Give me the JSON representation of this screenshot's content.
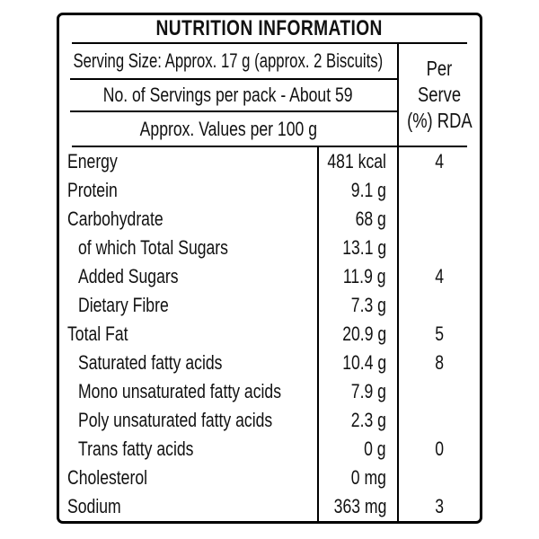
{
  "title": "NUTRITION INFORMATION",
  "header": {
    "serving_size": "Serving Size: Approx. 17 g (approx. 2 Biscuits)",
    "servings_per_pack": "No. of Servings per pack - About 59",
    "values_basis": "Approx. Values per 100 g",
    "per_serve": {
      "line1": "Per",
      "line2": "Serve",
      "line3": "(%) RDA"
    }
  },
  "rows": [
    {
      "label": "Energy",
      "value": "481 kcal",
      "rda": "4",
      "indent": false
    },
    {
      "label": "Protein",
      "value": "9.1 g",
      "rda": "",
      "indent": false
    },
    {
      "label": "Carbohydrate",
      "value": "68 g",
      "rda": "",
      "indent": false
    },
    {
      "label": "of which Total Sugars",
      "value": "13.1 g",
      "rda": "",
      "indent": true
    },
    {
      "label": "Added Sugars",
      "value": "11.9 g",
      "rda": "4",
      "indent": true
    },
    {
      "label": "Dietary Fibre",
      "value": "7.3 g",
      "rda": "",
      "indent": true
    },
    {
      "label": "Total Fat",
      "value": "20.9 g",
      "rda": "5",
      "indent": false
    },
    {
      "label": "Saturated fatty acids",
      "value": "10.4 g",
      "rda": "8",
      "indent": true
    },
    {
      "label": "Mono unsaturated fatty acids",
      "value": "7.9 g",
      "rda": "",
      "indent": true
    },
    {
      "label": "Poly unsaturated fatty acids",
      "value": "2.3 g",
      "rda": "",
      "indent": true
    },
    {
      "label": "Trans fatty acids",
      "value": "0 g",
      "rda": "0",
      "indent": true
    },
    {
      "label": "Cholesterol",
      "value": "0 mg",
      "rda": "",
      "indent": false
    },
    {
      "label": "Sodium",
      "value": "363 mg",
      "rda": "3",
      "indent": false
    }
  ],
  "colors": {
    "text": "#111111",
    "line": "#000000",
    "background": "#ffffff"
  }
}
